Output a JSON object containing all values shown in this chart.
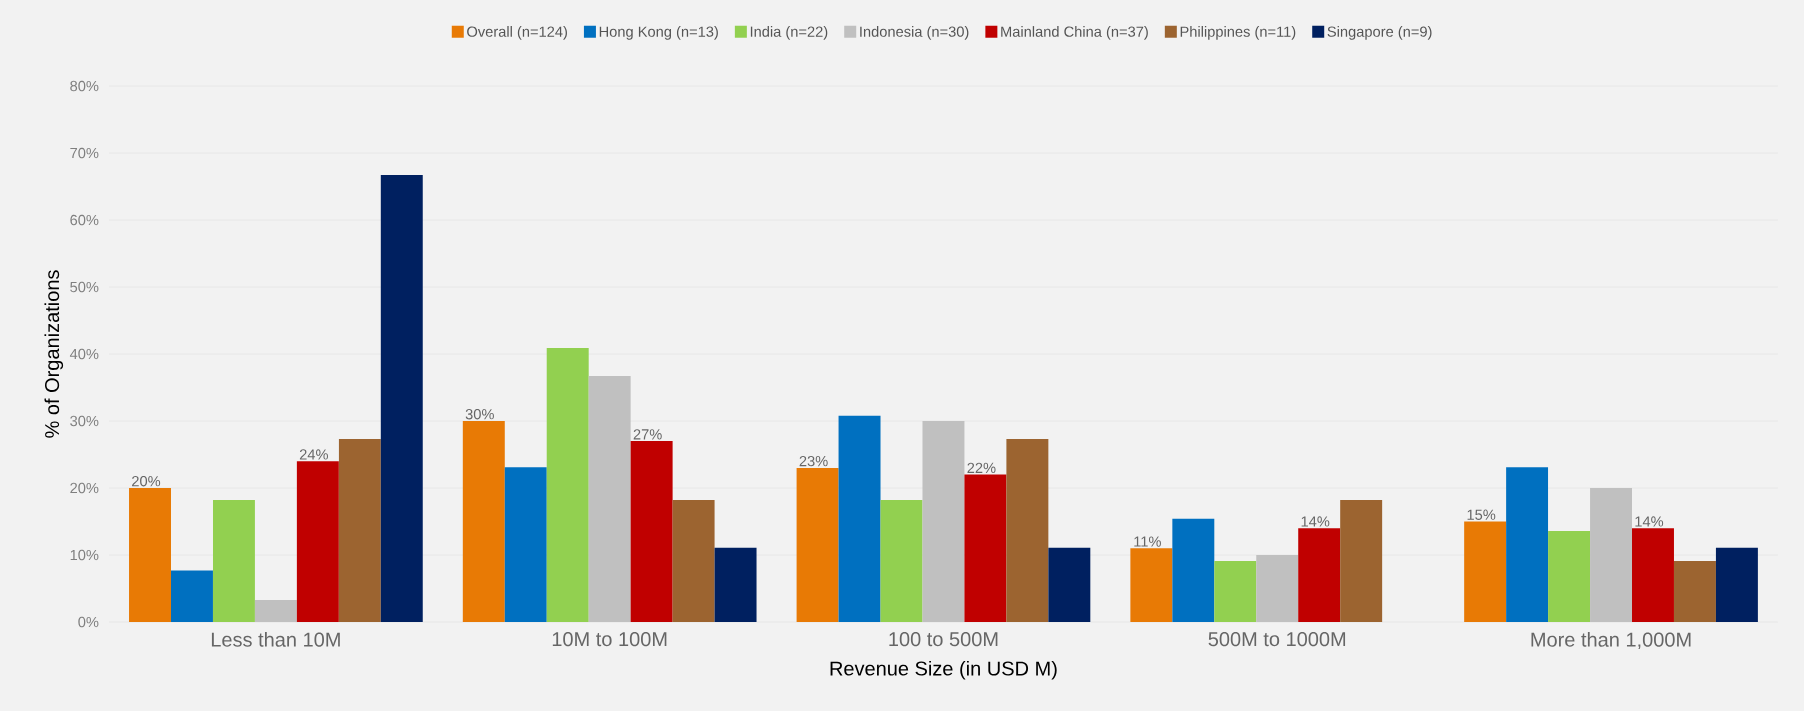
{
  "chart_data": {
    "type": "bar",
    "xlabel": "Revenue Size (in USD M)",
    "ylabel": "% of Organizations",
    "categories": [
      "Less than 10M",
      "10M to 100M",
      "100 to 500M",
      "500M to 1000M",
      "More than 1,000M"
    ],
    "series": [
      {
        "name": "Overall (n=124)",
        "color": "#e87a05",
        "values": [
          20,
          30,
          23,
          11,
          15
        ],
        "value_labels": [
          "20%",
          "30%",
          "23%",
          "11%",
          "15%"
        ]
      },
      {
        "name": "Hong Kong (n=13)",
        "color": "#0070c0",
        "values": [
          7.7,
          23.1,
          30.8,
          15.4,
          23.1
        ]
      },
      {
        "name": "India (n=22)",
        "color": "#92d050",
        "values": [
          18.2,
          40.9,
          18.2,
          9.1,
          13.6
        ]
      },
      {
        "name": "Indonesia (n=30)",
        "color": "#c0c0c0",
        "values": [
          3.3,
          36.7,
          30,
          10,
          20
        ]
      },
      {
        "name": "Mainland China (n=37)",
        "color": "#c00000",
        "values": [
          24,
          27,
          22,
          14,
          14
        ],
        "value_labels": [
          "24%",
          "27%",
          "22%",
          "14%",
          "14%"
        ]
      },
      {
        "name": "Philippines (n=11)",
        "color": "#9c6430",
        "values": [
          27.3,
          18.2,
          27.3,
          18.2,
          9.1
        ]
      },
      {
        "name": "Singapore (n=9)",
        "color": "#002060",
        "values": [
          66.7,
          11.1,
          11.1,
          null,
          11.1
        ]
      }
    ],
    "ylim": [
      0,
      80
    ],
    "yticks": [
      {
        "value": 0,
        "label": "0%"
      },
      {
        "value": 10,
        "label": "10%"
      },
      {
        "value": 20,
        "label": "20%"
      },
      {
        "value": 30,
        "label": "30%"
      },
      {
        "value": 40,
        "label": "40%"
      },
      {
        "value": 50,
        "label": "50%"
      },
      {
        "value": 60,
        "label": "60%"
      },
      {
        "value": 70,
        "label": "70%"
      },
      {
        "value": 80,
        "label": "80%"
      }
    ],
    "grid": "y",
    "legend": "top"
  }
}
